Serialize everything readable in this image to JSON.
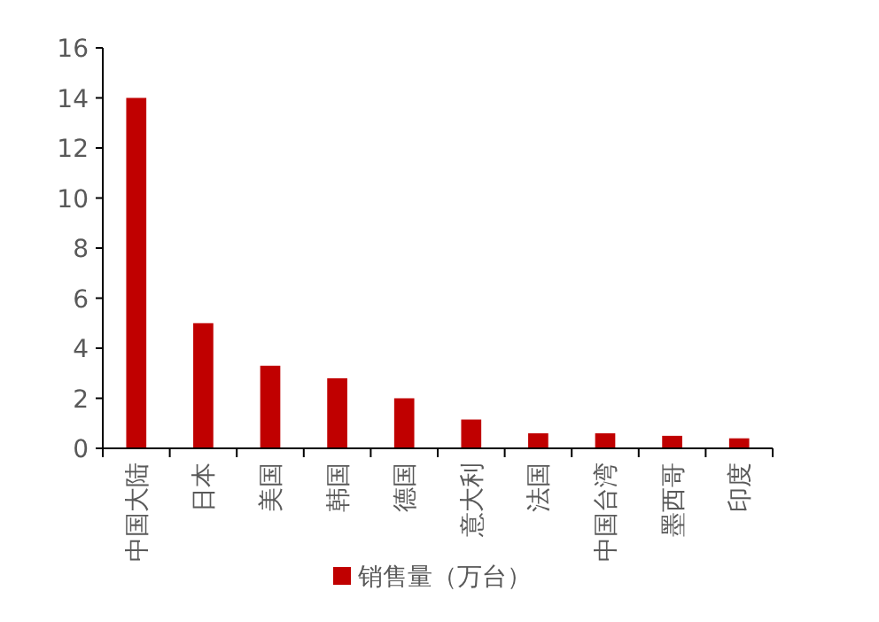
{
  "chart_data": {
    "type": "bar",
    "categories": [
      "中国大陆",
      "日本",
      "美国",
      "韩国",
      "德国",
      "意大利",
      "法国",
      "中国台湾",
      "墨西哥",
      "印度"
    ],
    "series": [
      {
        "name": "销售量（万台）",
        "color": "#c00000",
        "values": [
          14,
          5,
          3.3,
          2.8,
          2.0,
          1.15,
          0.6,
          0.6,
          0.5,
          0.4
        ]
      }
    ],
    "ylim": [
      0,
      16
    ],
    "yticks": [
      0,
      2,
      4,
      6,
      8,
      10,
      12,
      14,
      16
    ],
    "grid": false,
    "legend": "bottom"
  }
}
